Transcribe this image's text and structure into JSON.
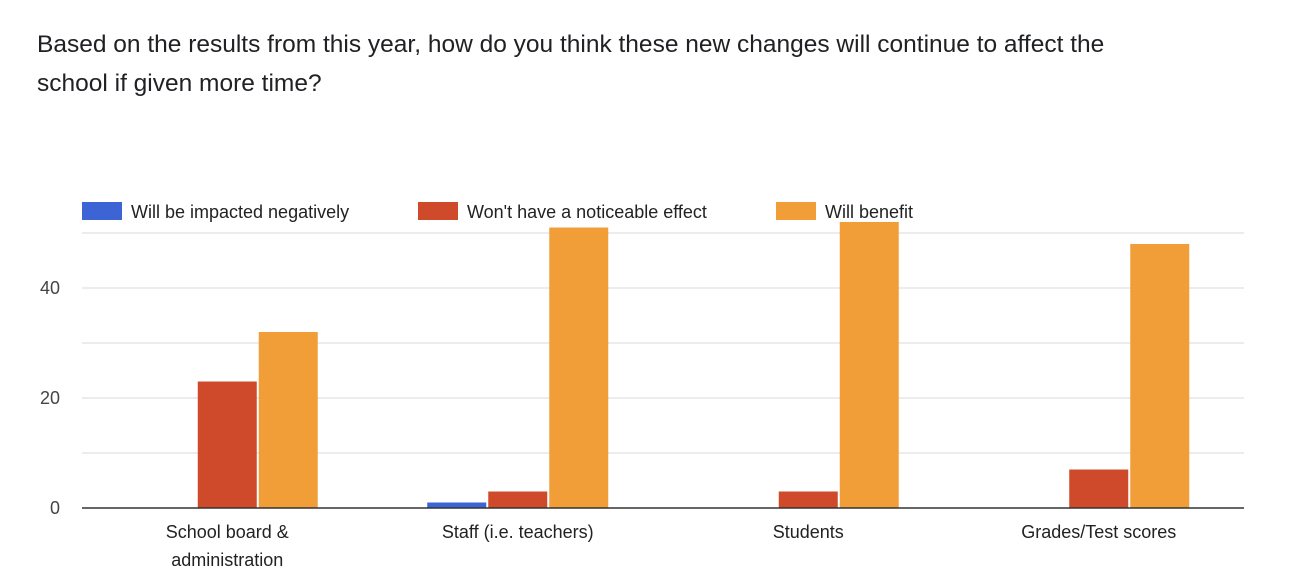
{
  "question": {
    "line1": "Based on the results from this year, how do you think these new changes will continue to affect the",
    "line2": "school if given more time?"
  },
  "colors": {
    "negative": "#3c64d4",
    "no_effect": "#cf4a2a",
    "benefit": "#f19e38",
    "gridline": "#d9d9d9",
    "axis": "#333333"
  },
  "chart_data": {
    "type": "bar",
    "title": "",
    "xlabel": "",
    "ylabel": "",
    "categories": [
      [
        "School board &",
        "administration"
      ],
      [
        "Staff (i.e. teachers)"
      ],
      [
        "Students"
      ],
      [
        "Grades/Test scores"
      ]
    ],
    "series": [
      {
        "name": "Will be impacted negatively",
        "color": "#3c64d4",
        "values": [
          0,
          1,
          0,
          0
        ]
      },
      {
        "name": "Won't have a noticeable effect",
        "color": "#cf4a2a",
        "values": [
          23,
          3,
          3,
          7
        ]
      },
      {
        "name": "Will benefit",
        "color": "#f19e38",
        "values": [
          32,
          51,
          52,
          48
        ]
      }
    ],
    "yticks": [
      0,
      20,
      40
    ],
    "ylim": [
      0,
      50
    ],
    "grid": true,
    "legend_position": "top-left"
  }
}
